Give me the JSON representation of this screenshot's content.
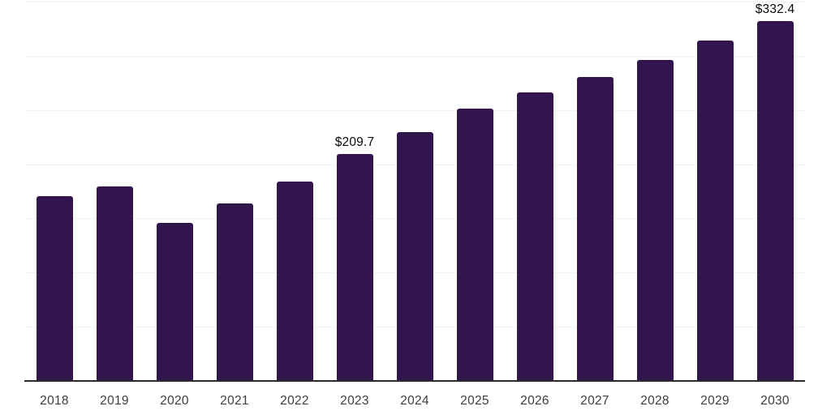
{
  "chart_data": {
    "type": "bar",
    "title": "",
    "xlabel": "",
    "ylabel": "",
    "categories": [
      "2018",
      "2019",
      "2020",
      "2021",
      "2022",
      "2023",
      "2024",
      "2025",
      "2026",
      "2027",
      "2028",
      "2029",
      "2030"
    ],
    "values": [
      170.5,
      179.4,
      145.9,
      163.6,
      184.2,
      209.7,
      229.6,
      251.0,
      265.9,
      280.1,
      296.5,
      314.4,
      332.4
    ],
    "annotations": [
      {
        "category": "2023",
        "text": "$209.7"
      },
      {
        "category": "2030",
        "text": "$332.4"
      }
    ],
    "ylim": [
      0,
      350
    ],
    "gridline_step": 50,
    "grid": true,
    "legend": false,
    "colors": {
      "bar": "#33154d",
      "gridline": "#f2f2f2",
      "axis_line": "#2b2b2b",
      "tick_label": "#3d3d3d",
      "value_label": "#0a0a0a"
    }
  }
}
